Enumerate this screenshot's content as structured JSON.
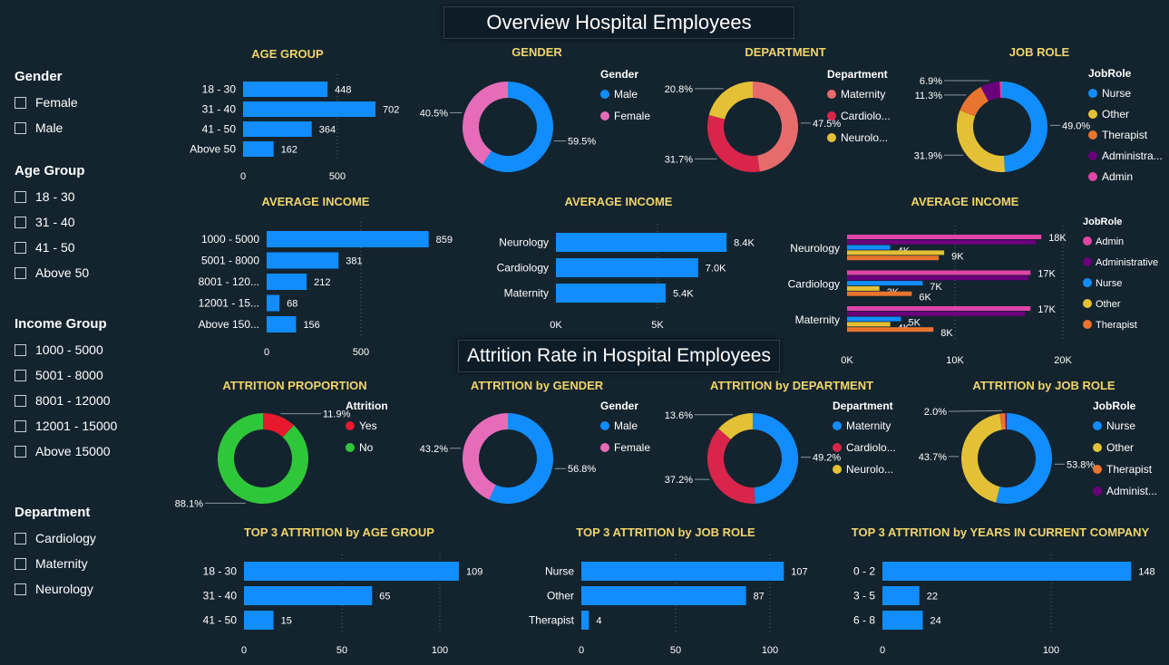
{
  "banners": {
    "overview": "Overview Hospital Employees",
    "attrition": "Attrition Rate in Hospital Employees"
  },
  "slicers": [
    {
      "title": "Gender",
      "options": [
        "Female",
        "Male"
      ]
    },
    {
      "title": "Age Group",
      "options": [
        "18 - 30",
        "31 - 40",
        "41 - 50",
        "Above 50"
      ]
    },
    {
      "title": "Income Group",
      "options": [
        "1000 - 5000",
        "5001 - 8000",
        "8001 - 12000",
        "12001 - 15000",
        "Above 15000"
      ]
    },
    {
      "title": "Department",
      "options": [
        "Cardiology",
        "Maternity",
        "Neurology"
      ]
    }
  ],
  "colors": {
    "blue": "#118dff",
    "pink": "#e66cb9",
    "salmon": "#e66c6c",
    "crimson": "#d9254a",
    "yellow": "#e3c035",
    "orange": "#e8742f",
    "purple": "#6b007b",
    "magenta": "#e044a7",
    "red": "#e8192c",
    "green": "#2fc73a",
    "title": "#f2d46b"
  },
  "chart_data": [
    {
      "id": "age-group",
      "type": "bar",
      "title": "AGE GROUP",
      "categories": [
        "18 - 30",
        "31 - 40",
        "41 - 50",
        "Above 50"
      ],
      "values": [
        448,
        702,
        364,
        162
      ],
      "labels": [
        "448",
        "702",
        "364",
        "162"
      ],
      "ticks": [
        "0",
        "500"
      ],
      "xlim": [
        0,
        1000
      ]
    },
    {
      "id": "gender",
      "type": "pie",
      "title": "GENDER",
      "legend_title": "Gender",
      "slices": [
        {
          "name": "Male",
          "value": 59.5,
          "label": "59.5%",
          "color": "#118dff"
        },
        {
          "name": "Female",
          "value": 40.5,
          "label": "40.5%",
          "color": "#e66cb9"
        }
      ]
    },
    {
      "id": "department",
      "type": "pie",
      "title": "DEPARTMENT",
      "legend_title": "Department",
      "slices": [
        {
          "name": "Maternity",
          "value": 47.5,
          "label": "47.5%",
          "color": "#e66c6c"
        },
        {
          "name": "Cardiolo...",
          "value": 31.7,
          "label": "31.7%",
          "color": "#d9254a"
        },
        {
          "name": "Neurolo...",
          "value": 20.8,
          "label": "20.8%",
          "color": "#e3c035"
        }
      ]
    },
    {
      "id": "job-role",
      "type": "pie",
      "title": "JOB ROLE",
      "legend_title": "JobRole",
      "slices": [
        {
          "name": "Nurse",
          "value": 49.0,
          "label": "49.0%",
          "color": "#118dff"
        },
        {
          "name": "Other",
          "value": 31.9,
          "label": "31.9%",
          "color": "#e3c035"
        },
        {
          "name": "Therapist",
          "value": 11.3,
          "label": "11.3%",
          "color": "#e8742f"
        },
        {
          "name": "Administra...",
          "value": 6.9,
          "label": "6.9%",
          "color": "#6b007b"
        },
        {
          "name": "Admin",
          "value": 0.9,
          "label": "",
          "color": "#e044a7"
        }
      ]
    },
    {
      "id": "income-group",
      "type": "bar",
      "title": "AVERAGE INCOME",
      "categories": [
        "1000 - 5000",
        "5001 - 8000",
        "8001 - 120...",
        "12001 - 15...",
        "Above 150..."
      ],
      "values": [
        859,
        381,
        212,
        68,
        156
      ],
      "labels": [
        "859",
        "381",
        "212",
        "68",
        "156"
      ],
      "ticks": [
        "0",
        "500"
      ],
      "xlim": [
        0,
        1000
      ]
    },
    {
      "id": "income-dept",
      "type": "bar",
      "title": "AVERAGE INCOME",
      "categories": [
        "Neurology",
        "Cardiology",
        "Maternity"
      ],
      "values": [
        8400,
        7000,
        5400
      ],
      "labels": [
        "8.4K",
        "7.0K",
        "5.4K"
      ],
      "ticks": [
        "0K",
        "5K"
      ],
      "xlim": [
        0,
        10000
      ]
    },
    {
      "id": "income-dept-role",
      "type": "bar",
      "title": "AVERAGE INCOME",
      "legend_title": "JobRole",
      "categories": [
        "Neurology",
        "Cardiology",
        "Maternity"
      ],
      "ticks": [
        "0K",
        "10K",
        "20K"
      ],
      "xlim": [
        0,
        20000
      ],
      "series": [
        {
          "name": "Admin",
          "color": "#e044a7",
          "values": [
            18000,
            17000,
            17000
          ],
          "labels": [
            "18K",
            "17K",
            "17K"
          ]
        },
        {
          "name": "Administrative",
          "color": "#6b007b",
          "values": [
            17500,
            16800,
            16500
          ],
          "labels": [
            "",
            "",
            ""
          ]
        },
        {
          "name": "Nurse",
          "color": "#118dff",
          "values": [
            4000,
            7000,
            5000
          ],
          "labels": [
            "4K",
            "7K",
            "5K"
          ]
        },
        {
          "name": "Other",
          "color": "#e3c035",
          "values": [
            9000,
            3000,
            4000
          ],
          "labels": [
            "9K",
            "3K",
            "4K"
          ]
        },
        {
          "name": "Therapist",
          "color": "#e8742f",
          "values": [
            8500,
            6000,
            8000
          ],
          "labels": [
            "",
            "6K",
            "8K"
          ]
        }
      ]
    },
    {
      "id": "attrition-proportion",
      "type": "pie",
      "title": "ATTRITION PROPORTION",
      "legend_title": "Attrition",
      "slices": [
        {
          "name": "Yes",
          "value": 11.9,
          "label": "11.9%",
          "color": "#e8192c"
        },
        {
          "name": "No",
          "value": 88.1,
          "label": "88.1%",
          "color": "#2fc73a"
        }
      ]
    },
    {
      "id": "attrition-gender",
      "type": "pie",
      "title": "ATTRITION by GENDER",
      "legend_title": "Gender",
      "slices": [
        {
          "name": "Male",
          "value": 56.8,
          "label": "56.8%",
          "color": "#118dff"
        },
        {
          "name": "Female",
          "value": 43.2,
          "label": "43.2%",
          "color": "#e66cb9"
        }
      ]
    },
    {
      "id": "attrition-department",
      "type": "pie",
      "title": "ATTRITION by DEPARTMENT",
      "legend_title": "Department",
      "slices": [
        {
          "name": "Maternity",
          "value": 49.2,
          "label": "49.2%",
          "color": "#118dff"
        },
        {
          "name": "Cardiolo...",
          "value": 37.2,
          "label": "37.2%",
          "color": "#d9254a"
        },
        {
          "name": "Neurolo...",
          "value": 13.6,
          "label": "13.6%",
          "color": "#e3c035"
        }
      ]
    },
    {
      "id": "attrition-job-role",
      "type": "pie",
      "title": "ATTRITION by JOB ROLE",
      "legend_title": "JobRole",
      "slices": [
        {
          "name": "Nurse",
          "value": 53.8,
          "label": "53.8%",
          "color": "#118dff"
        },
        {
          "name": "Other",
          "value": 43.7,
          "label": "43.7%",
          "color": "#e3c035"
        },
        {
          "name": "Therapist",
          "value": 2.0,
          "label": "2.0%",
          "color": "#e8742f"
        },
        {
          "name": "Administ...",
          "value": 0.5,
          "label": "",
          "color": "#6b007b"
        }
      ]
    },
    {
      "id": "top3-age",
      "type": "bar",
      "title": "TOP 3 ATTRITION by AGE GROUP",
      "categories": [
        "18 - 30",
        "31 - 40",
        "41 - 50"
      ],
      "values": [
        109,
        65,
        15
      ],
      "labels": [
        "109",
        "65",
        "15"
      ],
      "ticks": [
        "0",
        "50",
        "100"
      ],
      "xlim": [
        0,
        115
      ]
    },
    {
      "id": "top3-role",
      "type": "bar",
      "title": "TOP 3 ATTRITION by JOB ROLE",
      "categories": [
        "Nurse",
        "Other",
        "Therapist"
      ],
      "values": [
        107,
        87,
        4
      ],
      "labels": [
        "107",
        "87",
        "4"
      ],
      "ticks": [
        "0",
        "50",
        "100"
      ],
      "xlim": [
        0,
        115
      ]
    },
    {
      "id": "top3-years",
      "type": "bar",
      "title": "TOP 3 ATTRITION by YEARS IN CURRENT COMPANY",
      "categories": [
        "0 - 2",
        "3 - 5",
        "6 - 8"
      ],
      "values": [
        148,
        22,
        24
      ],
      "labels": [
        "148",
        "22",
        "24"
      ],
      "ticks": [
        "0",
        "100"
      ],
      "xlim": [
        0,
        150
      ]
    }
  ]
}
